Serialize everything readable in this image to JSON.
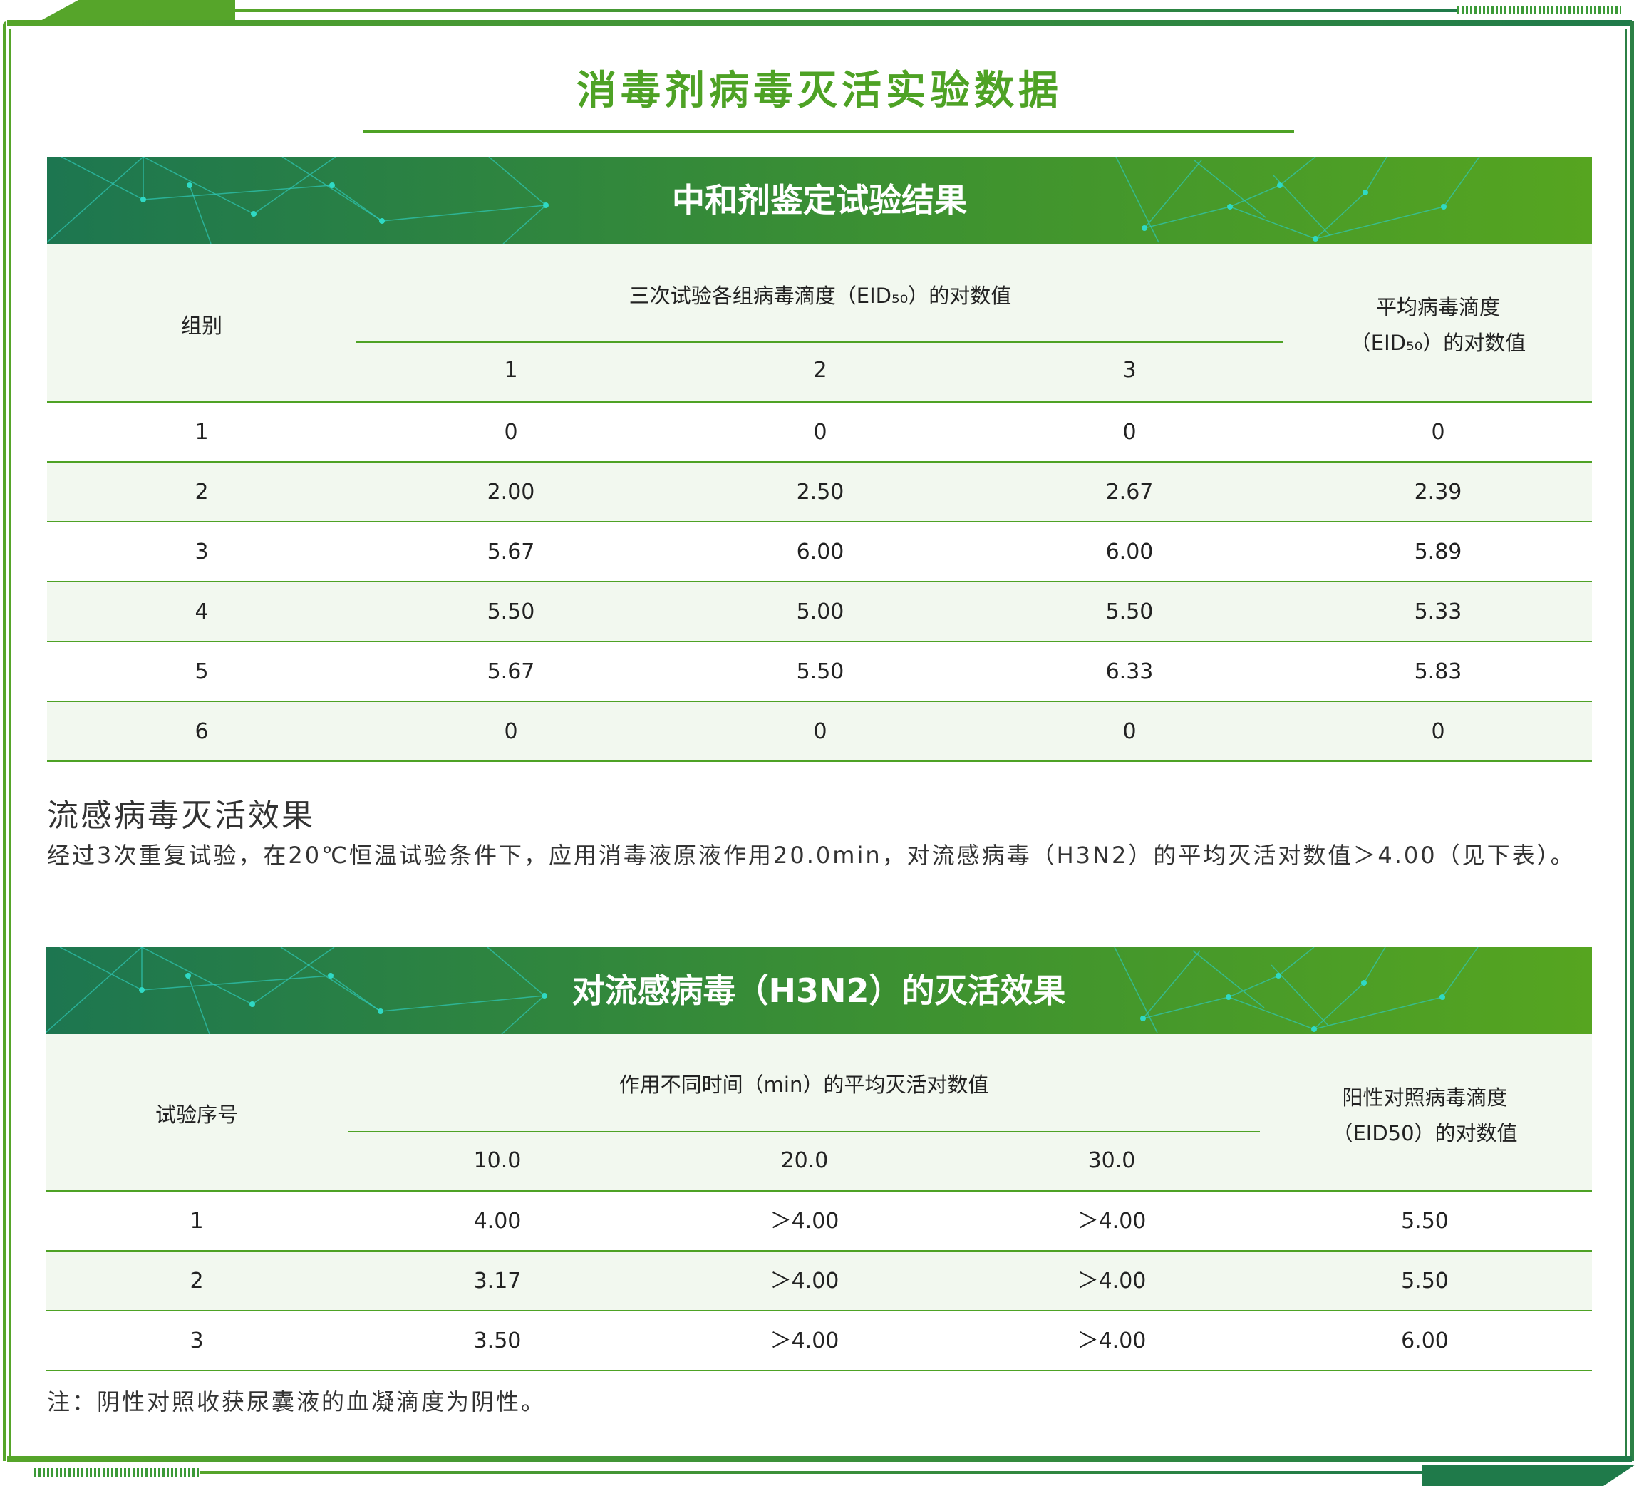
{
  "title": "消毒剂病毒灭活实验数据",
  "table1": {
    "banner": "中和剂鉴定试验结果",
    "group_header": "组别",
    "titer_header": "三次试验各组病毒滴度（EID₅₀）的对数值",
    "trial_cols": [
      "1",
      "2",
      "3"
    ],
    "avg_header_line1": "平均病毒滴度",
    "avg_header_line2": "（EID₅₀）的对数值",
    "rows": [
      [
        "1",
        "0",
        "0",
        "0",
        "0"
      ],
      [
        "2",
        "2.00",
        "2.50",
        "2.67",
        "2.39"
      ],
      [
        "3",
        "5.67",
        "6.00",
        "6.00",
        "5.89"
      ],
      [
        "4",
        "5.50",
        "5.00",
        "5.50",
        "5.33"
      ],
      [
        "5",
        "5.67",
        "5.50",
        "6.33",
        "5.83"
      ],
      [
        "6",
        "0",
        "0",
        "0",
        "0"
      ]
    ]
  },
  "section": {
    "heading": "流感病毒灭活效果",
    "paragraph": "经过3次重复试验，在20℃恒温试验条件下，应用消毒液原液作用20.0min，对流感病毒（H3N2）的平均灭活对数值＞4.00（见下表）。"
  },
  "table2": {
    "banner": "对流感病毒（H3N2）的灭活效果",
    "trial_header": "试验序号",
    "time_header": "作用不同时间（min）的平均灭活对数值",
    "time_cols": [
      "10.0",
      "20.0",
      "30.0"
    ],
    "control_header_line1": "阳性对照病毒滴度",
    "control_header_line2": "（EID50）的对数值",
    "rows": [
      [
        "1",
        "4.00",
        "＞4.00",
        "＞4.00",
        "5.50"
      ],
      [
        "2",
        "3.17",
        "＞4.00",
        "＞4.00",
        "5.50"
      ],
      [
        "3",
        "3.50",
        "＞4.00",
        "＞4.00",
        "6.00"
      ]
    ]
  },
  "note": "注：阴性对照收获尿囊液的血凝滴度为阴性。",
  "colors": {
    "accent": "#4ea225",
    "dark_green": "#1d7650",
    "header_bg": "#f2f8ef"
  }
}
